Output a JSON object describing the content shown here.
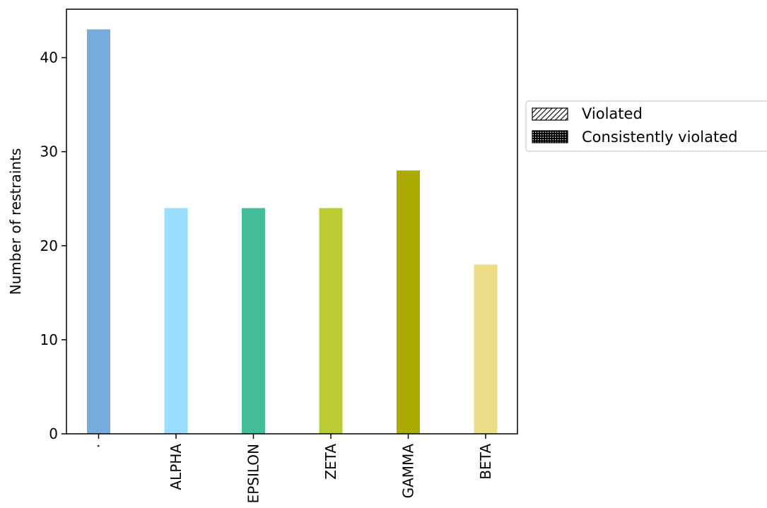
{
  "chart_data": {
    "type": "bar",
    "categories": [
      "·",
      "ALPHA",
      "EPSILON",
      "ZETA",
      "GAMMA",
      "BETA"
    ],
    "values": [
      43,
      24,
      24,
      24,
      28,
      18
    ],
    "colors": [
      "#77aadd",
      "#99ddff",
      "#44bb99",
      "#bbcc33",
      "#aaaa00",
      "#eedd88"
    ],
    "title": "",
    "xlabel": "",
    "ylabel": "Number of restraints",
    "ylim": [
      0,
      45.15
    ],
    "yticks": [
      0,
      10,
      20,
      30,
      40
    ],
    "grid": false,
    "legend": {
      "placement": "right",
      "entries": [
        {
          "label": "Violated",
          "pattern": "hatch-diagonal"
        },
        {
          "label": "Consistently violated",
          "pattern": "dots"
        }
      ]
    }
  }
}
